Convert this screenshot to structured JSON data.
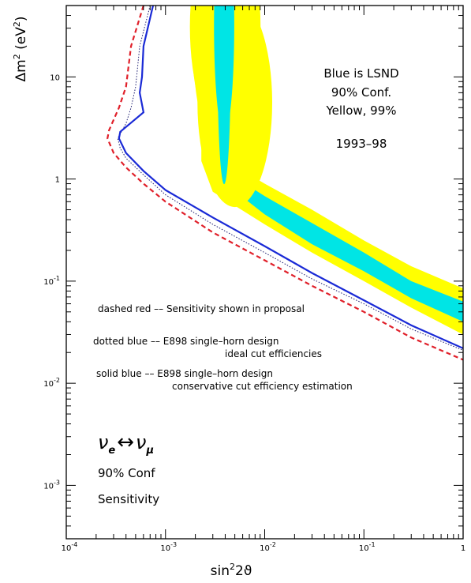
{
  "chart_data": {
    "type": "line",
    "x_scale": "log",
    "y_scale": "log",
    "xlim": [
      0.0001,
      1
    ],
    "ylim": [
      0.0003,
      50
    ],
    "x_ticks": [
      {
        "value": 0.0001,
        "base": "10",
        "exp": "-4"
      },
      {
        "value": 0.001,
        "base": "10",
        "exp": "-3"
      },
      {
        "value": 0.01,
        "base": "10",
        "exp": "-2"
      },
      {
        "value": 0.1,
        "base": "10",
        "exp": "-1"
      },
      {
        "value": 1,
        "base": "1",
        "exp": ""
      }
    ],
    "y_ticks": [
      {
        "value": 0.001,
        "base": "10",
        "exp": "-3"
      },
      {
        "value": 0.01,
        "base": "10",
        "exp": "-2"
      },
      {
        "value": 0.1,
        "base": "10",
        "exp": "-1"
      },
      {
        "value": 1,
        "base": "1",
        "exp": ""
      },
      {
        "value": 10,
        "base": "10",
        "exp": ""
      }
    ],
    "xlabel": {
      "base": "sin",
      "sup": "2",
      "tail": "2ϑ"
    },
    "ylabel": {
      "base": "Δm",
      "sup1": "2",
      "mid": " (eV",
      "sup2": "2",
      "tail": ")"
    },
    "series": [
      {
        "color": "#e0202a",
        "style": "dashed",
        "points": [
          [
            0.0006,
            50
          ],
          [
            0.00045,
            20
          ],
          [
            0.0004,
            8
          ],
          [
            0.00034,
            5
          ],
          [
            0.00027,
            3
          ],
          [
            0.00026,
            2.5
          ],
          [
            0.0003,
            1.8
          ],
          [
            0.0004,
            1.3
          ],
          [
            0.0006,
            0.9
          ],
          [
            0.001,
            0.6
          ],
          [
            0.003,
            0.3
          ],
          [
            0.01,
            0.16
          ],
          [
            0.03,
            0.09
          ],
          [
            0.1,
            0.05
          ],
          [
            0.3,
            0.028
          ],
          [
            1,
            0.017
          ]
        ]
      },
      {
        "color": "#1a1a6e",
        "style": "dotted",
        "points": [
          [
            0.0007,
            50
          ],
          [
            0.00055,
            20
          ],
          [
            0.0005,
            8
          ],
          [
            0.00045,
            5
          ],
          [
            0.0004,
            3.5
          ],
          [
            0.00033,
            2.5
          ],
          [
            0.00035,
            2
          ],
          [
            0.0004,
            1.6
          ],
          [
            0.0006,
            1.1
          ],
          [
            0.001,
            0.7
          ],
          [
            0.003,
            0.36
          ],
          [
            0.01,
            0.19
          ],
          [
            0.03,
            0.105
          ],
          [
            0.1,
            0.06
          ],
          [
            0.3,
            0.034
          ],
          [
            1,
            0.021
          ]
        ]
      },
      {
        "color": "#1a2ad6",
        "style": "solid",
        "points": [
          [
            0.00075,
            50
          ],
          [
            0.0006,
            20
          ],
          [
            0.00058,
            10
          ],
          [
            0.00055,
            7
          ],
          [
            0.0006,
            4.5
          ],
          [
            0.00035,
            2.9
          ],
          [
            0.00034,
            2.5
          ],
          [
            0.0004,
            1.8
          ],
          [
            0.0006,
            1.2
          ],
          [
            0.001,
            0.78
          ],
          [
            0.003,
            0.42
          ],
          [
            0.01,
            0.22
          ],
          [
            0.03,
            0.12
          ],
          [
            0.1,
            0.065
          ],
          [
            0.3,
            0.037
          ],
          [
            1,
            0.022
          ]
        ]
      }
    ],
    "regions": [
      {
        "level": "99%",
        "color": "#ffff00",
        "kind": "band",
        "upper": [
          [
            0.0023,
            2.3
          ],
          [
            0.003,
            1.8
          ],
          [
            0.01,
            0.9
          ],
          [
            0.03,
            0.5
          ],
          [
            0.1,
            0.25
          ],
          [
            0.3,
            0.14
          ],
          [
            1,
            0.085
          ]
        ],
        "lower": [
          [
            1,
            0.03
          ],
          [
            0.3,
            0.055
          ],
          [
            0.1,
            0.1
          ],
          [
            0.03,
            0.19
          ],
          [
            0.01,
            0.36
          ],
          [
            0.003,
            0.75
          ],
          [
            0.0023,
            1.5
          ]
        ]
      },
      {
        "level": "90%",
        "color": "#00e5e5",
        "kind": "band",
        "upper": [
          [
            0.0033,
            1.35
          ],
          [
            0.01,
            0.68
          ],
          [
            0.03,
            0.37
          ],
          [
            0.1,
            0.19
          ],
          [
            0.3,
            0.1
          ],
          [
            1,
            0.063
          ]
        ],
        "lower": [
          [
            1,
            0.04
          ],
          [
            0.3,
            0.068
          ],
          [
            0.1,
            0.125
          ],
          [
            0.03,
            0.23
          ],
          [
            0.01,
            0.45
          ],
          [
            0.0035,
            1.0
          ],
          [
            0.0029,
            1.15
          ]
        ]
      },
      {
        "level": "99%",
        "color": "#ffff00",
        "kind": "patch",
        "x_range": [
          0.0025,
          0.0065
        ],
        "y_range": [
          30,
          50
        ]
      },
      {
        "level": "99%",
        "color": "#ffff00",
        "kind": "ellipse",
        "cx": 0.004,
        "cy": 31,
        "rx": 0.0027,
        "ry": 30.5
      },
      {
        "level": "99%",
        "color": "#ffff00",
        "kind": "ellipse",
        "cx": 0.004,
        "cy": 22,
        "rx": 0.0026,
        "ry": 21.5
      },
      {
        "level": "99%",
        "color": "#ffff00",
        "kind": "ellipse",
        "cx": 0.004,
        "cy": 16.5,
        "rx": 0.0025,
        "ry": 16.1
      },
      {
        "level": "99%",
        "color": "#ffff00",
        "kind": "ellipse",
        "cx": 0.004,
        "cy": 12.8,
        "rx": 0.0022,
        "ry": 12.5
      },
      {
        "level": "99%",
        "color": "#ffff00",
        "kind": "ellipse",
        "cx": 0.005,
        "cy": 5.6,
        "rx": 0.0035,
        "ry": 5.5
      },
      {
        "level": "90%",
        "color": "#00e5e5",
        "kind": "ellipse",
        "cx": 0.0039,
        "cy": 32,
        "rx": 0.0009,
        "ry": 31.5
      },
      {
        "level": "90%",
        "color": "#00e5e5",
        "kind": "ellipse",
        "cx": 0.0039,
        "cy": 15.8,
        "rx": 0.0006,
        "ry": 15.7
      },
      {
        "level": "90%",
        "color": "#00e5e5",
        "kind": "ellipse",
        "cx": 0.0039,
        "cy": 22.5,
        "rx": 0.0005,
        "ry": 22.4
      }
    ],
    "annotations": {
      "lsnd": [
        "Blue is LSND",
        "90% Conf.",
        "Yellow, 99%"
      ],
      "years": "1993–98",
      "legend": [
        [
          "dashed red  ––  Sensitivity shown in proposal"
        ],
        [
          "dotted blue  ––  E898 single–horn design",
          "ideal cut efficiencies"
        ],
        [
          "solid blue  ––  E898 single–horn design",
          "conservative cut efficiency estimation"
        ]
      ],
      "oscillation": {
        "left": "ν",
        "left_sub": "e",
        "arrow": "↔",
        "right": "ν",
        "right_sub": "μ"
      },
      "conf": "90% Conf",
      "sensitivity": "Sensitivity"
    }
  }
}
